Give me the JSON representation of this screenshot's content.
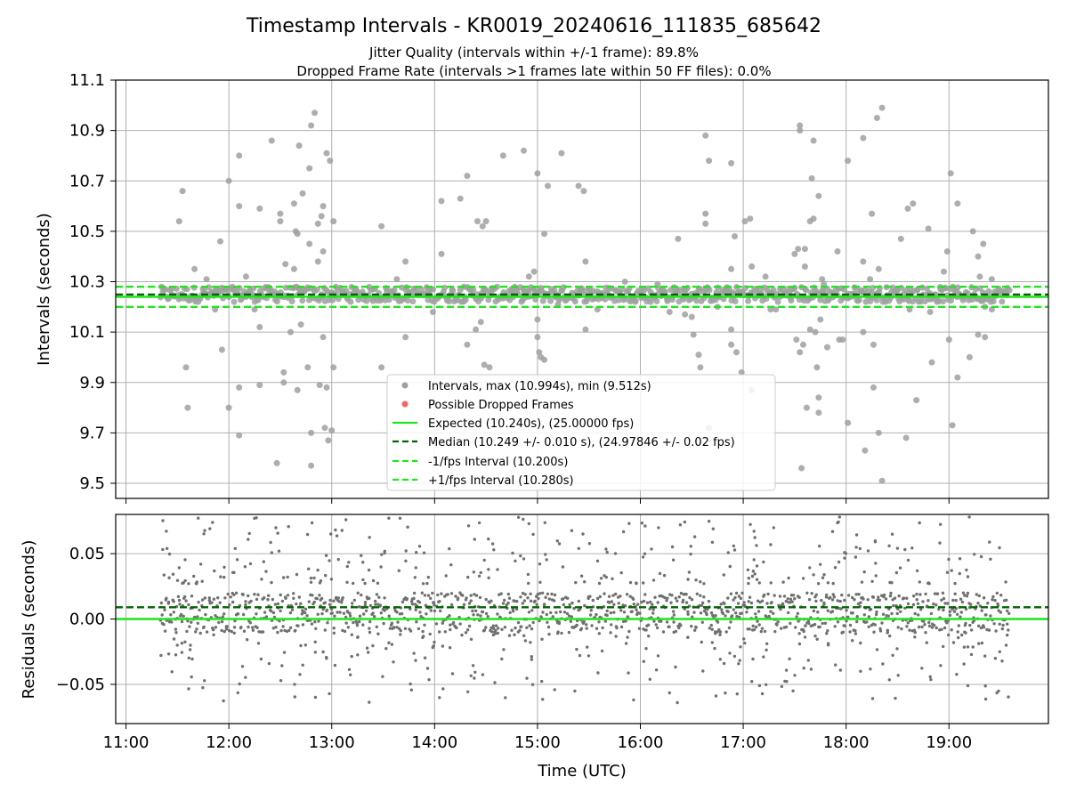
{
  "figure": {
    "title": "Timestamp Intervals - KR0019_20240616_111835_685642",
    "subtitle_1": "Jitter Quality (intervals within +/-1 frame): 89.8%",
    "subtitle_2": "Dropped Frame Rate (intervals >1 frames late within 50 FF files): 0.0%"
  },
  "chart_data": [
    {
      "type": "scatter",
      "ylabel": "Intervals (seconds)",
      "xlabel": "",
      "xlim": [
        "10:54",
        "19:58"
      ],
      "ylim": [
        9.44,
        11.1
      ],
      "yticks": [
        9.5,
        9.7,
        9.9,
        10.1,
        10.3,
        10.5,
        10.7,
        10.9,
        11.1
      ],
      "ytick_labels": [
        "9.5",
        "9.7",
        "9.9",
        "10.1",
        "10.3",
        "10.5",
        "10.7",
        "10.9",
        "11.1"
      ],
      "xticks": [
        "11:00",
        "12:00",
        "13:00",
        "14:00",
        "15:00",
        "16:00",
        "17:00",
        "18:00",
        "19:00"
      ],
      "grid": true,
      "legend_position": "lower-center",
      "series": [
        {
          "name": "Intervals, max (10.994s), min (9.512s)",
          "kind": "scatter",
          "color": "#a0a0a0",
          "x_start": "11:20",
          "x_end": "19:35",
          "core_y_range": [
            10.22,
            10.28
          ],
          "max": 10.994,
          "min": 9.512,
          "outliers": [
            [
              "11:31",
              10.54
            ],
            [
              "11:33",
              10.66
            ],
            [
              "11:35",
              9.96
            ],
            [
              "11:36",
              9.8
            ],
            [
              "11:40",
              10.35
            ],
            [
              "11:47",
              10.31
            ],
            [
              "11:52",
              10.19
            ],
            [
              "11:55",
              10.46
            ],
            [
              "11:56",
              10.03
            ],
            [
              "12:00",
              10.7
            ],
            [
              "12:00",
              9.8
            ],
            [
              "12:06",
              10.8
            ],
            [
              "12:06",
              10.6
            ],
            [
              "12:06",
              9.88
            ],
            [
              "12:06",
              9.69
            ],
            [
              "12:10",
              10.32
            ],
            [
              "12:15",
              10.19
            ],
            [
              "12:18",
              10.59
            ],
            [
              "12:18",
              10.12
            ],
            [
              "12:18",
              9.89
            ],
            [
              "12:25",
              10.86
            ],
            [
              "12:28",
              9.58
            ],
            [
              "12:30",
              10.57
            ],
            [
              "12:30",
              10.54
            ],
            [
              "12:32",
              9.94
            ],
            [
              "12:32",
              9.9
            ],
            [
              "12:33",
              10.37
            ],
            [
              "12:36",
              10.1
            ],
            [
              "12:38",
              10.35
            ],
            [
              "12:38",
              10.61
            ],
            [
              "12:39",
              10.5
            ],
            [
              "12:40",
              10.49
            ],
            [
              "12:40",
              9.87
            ],
            [
              "12:41",
              10.84
            ],
            [
              "12:42",
              10.13
            ],
            [
              "12:42",
              10.27
            ],
            [
              "12:43",
              10.65
            ],
            [
              "12:46",
              9.96
            ],
            [
              "12:47",
              10.45
            ],
            [
              "12:47",
              10.75
            ],
            [
              "12:48",
              10.92
            ],
            [
              "12:48",
              9.7
            ],
            [
              "12:48",
              9.57
            ],
            [
              "12:50",
              10.97
            ],
            [
              "12:52",
              10.53
            ],
            [
              "12:52",
              10.38
            ],
            [
              "12:53",
              9.89
            ],
            [
              "12:54",
              10.56
            ],
            [
              "12:55",
              10.6
            ],
            [
              "12:55",
              10.42
            ],
            [
              "12:55",
              10.08
            ],
            [
              "12:56",
              9.72
            ],
            [
              "12:57",
              9.88
            ],
            [
              "12:57",
              10.81
            ],
            [
              "12:58",
              9.67
            ],
            [
              "12:59",
              10.78
            ],
            [
              "13:00",
              9.71
            ],
            [
              "13:01",
              10.54
            ],
            [
              "13:01",
              9.96
            ],
            [
              "13:29",
              10.52
            ],
            [
              "13:29",
              9.96
            ],
            [
              "13:38",
              10.31
            ],
            [
              "13:43",
              10.38
            ],
            [
              "13:43",
              10.08
            ],
            [
              "13:59",
              10.18
            ],
            [
              "14:04",
              10.62
            ],
            [
              "14:04",
              10.41
            ],
            [
              "14:15",
              10.63
            ],
            [
              "14:17",
              10.28
            ],
            [
              "14:19",
              10.72
            ],
            [
              "14:19",
              10.05
            ],
            [
              "14:24",
              10.11
            ],
            [
              "14:25",
              10.54
            ],
            [
              "14:27",
              10.14
            ],
            [
              "14:28",
              10.52
            ],
            [
              "14:29",
              9.97
            ],
            [
              "14:30",
              10.54
            ],
            [
              "14:32",
              9.96
            ],
            [
              "14:40",
              10.8
            ],
            [
              "14:45",
              10.25
            ],
            [
              "14:52",
              10.82
            ],
            [
              "14:55",
              10.32
            ],
            [
              "14:58",
              10.34
            ],
            [
              "15:00",
              10.73
            ],
            [
              "15:00",
              10.15
            ],
            [
              "15:00",
              10.08
            ],
            [
              "15:01",
              10.02
            ],
            [
              "15:02",
              10.0
            ],
            [
              "15:04",
              10.49
            ],
            [
              "15:04",
              9.99
            ],
            [
              "15:06",
              10.68
            ],
            [
              "15:11",
              10.25
            ],
            [
              "15:12",
              10.21
            ],
            [
              "15:14",
              10.81
            ],
            [
              "15:24",
              10.68
            ],
            [
              "15:27",
              10.66
            ],
            [
              "15:28",
              10.38
            ],
            [
              "15:28",
              10.11
            ],
            [
              "15:35",
              10.19
            ],
            [
              "15:51",
              10.3
            ],
            [
              "16:06",
              10.22
            ],
            [
              "16:10",
              10.29
            ],
            [
              "16:13",
              10.27
            ],
            [
              "16:16",
              10.23
            ],
            [
              "16:17",
              10.18
            ],
            [
              "16:22",
              10.47
            ],
            [
              "16:26",
              10.17
            ],
            [
              "16:30",
              10.16
            ],
            [
              "16:31",
              10.09
            ],
            [
              "16:34",
              10.01
            ],
            [
              "16:35",
              9.96
            ],
            [
              "16:38",
              10.88
            ],
            [
              "16:38",
              10.57
            ],
            [
              "16:38",
              10.53
            ],
            [
              "16:40",
              10.78
            ],
            [
              "16:40",
              9.72
            ],
            [
              "16:45",
              10.2
            ],
            [
              "16:53",
              10.77
            ],
            [
              "16:53",
              10.35
            ],
            [
              "16:53",
              10.11
            ],
            [
              "16:53",
              10.05
            ],
            [
              "16:55",
              10.48
            ],
            [
              "16:56",
              10.02
            ],
            [
              "16:59",
              9.94
            ],
            [
              "17:01",
              10.54
            ],
            [
              "17:04",
              10.55
            ],
            [
              "17:05",
              10.36
            ],
            [
              "17:05",
              9.87
            ],
            [
              "17:13",
              10.32
            ],
            [
              "17:16",
              10.19
            ],
            [
              "17:19",
              10.19
            ],
            [
              "17:30",
              10.41
            ],
            [
              "17:31",
              10.07
            ],
            [
              "17:32",
              10.43
            ],
            [
              "17:33",
              10.02
            ],
            [
              "17:33",
              10.92
            ],
            [
              "17:33",
              10.9
            ],
            [
              "17:34",
              9.56
            ],
            [
              "17:35",
              10.05
            ],
            [
              "17:36",
              10.43
            ],
            [
              "17:36",
              10.36
            ],
            [
              "17:37",
              9.8
            ],
            [
              "17:39",
              10.11
            ],
            [
              "17:39",
              10.54
            ],
            [
              "17:40",
              10.71
            ],
            [
              "17:41",
              10.86
            ],
            [
              "17:41",
              10.55
            ],
            [
              "17:42",
              10.1
            ],
            [
              "17:43",
              9.96
            ],
            [
              "17:44",
              10.64
            ],
            [
              "17:44",
              9.84
            ],
            [
              "17:44",
              9.78
            ],
            [
              "17:45",
              10.15
            ],
            [
              "17:46",
              10.31
            ],
            [
              "17:47",
              10.29
            ],
            [
              "17:49",
              10.04
            ],
            [
              "17:55",
              10.42
            ],
            [
              "17:56",
              10.07
            ],
            [
              "17:58",
              10.07
            ],
            [
              "18:01",
              10.78
            ],
            [
              "18:01",
              9.74
            ],
            [
              "18:10",
              10.87
            ],
            [
              "18:10",
              10.38
            ],
            [
              "18:10",
              10.1
            ],
            [
              "18:11",
              9.63
            ],
            [
              "18:14",
              10.31
            ],
            [
              "18:15",
              10.57
            ],
            [
              "18:16",
              10.05
            ],
            [
              "18:16",
              9.88
            ],
            [
              "18:18",
              10.95
            ],
            [
              "18:19",
              10.35
            ],
            [
              "18:19",
              9.7
            ],
            [
              "18:21",
              10.99
            ],
            [
              "18:21",
              9.51
            ],
            [
              "18:32",
              10.47
            ],
            [
              "18:35",
              9.68
            ],
            [
              "18:36",
              10.59
            ],
            [
              "18:37",
              10.19
            ],
            [
              "18:39",
              10.61
            ],
            [
              "18:41",
              9.83
            ],
            [
              "18:48",
              10.51
            ],
            [
              "18:48",
              10.23
            ],
            [
              "18:49",
              10.18
            ],
            [
              "18:50",
              9.98
            ],
            [
              "18:53",
              10.22
            ],
            [
              "18:57",
              10.34
            ],
            [
              "18:59",
              10.42
            ],
            [
              "19:00",
              10.07
            ],
            [
              "19:01",
              10.73
            ],
            [
              "19:02",
              9.73
            ],
            [
              "19:05",
              10.61
            ],
            [
              "19:05",
              9.92
            ],
            [
              "19:12",
              10.0
            ],
            [
              "19:14",
              10.5
            ],
            [
              "19:17",
              10.4
            ],
            [
              "19:17",
              10.09
            ],
            [
              "19:18",
              10.32
            ],
            [
              "19:18",
              10.23
            ],
            [
              "19:20",
              10.45
            ],
            [
              "19:21",
              10.08
            ],
            [
              "19:21",
              10.2
            ],
            [
              "19:25",
              10.31
            ],
            [
              "19:25",
              10.19
            ]
          ]
        },
        {
          "name": "Possible Dropped Frames",
          "kind": "scatter",
          "color": "#f04040",
          "points": []
        },
        {
          "name": "Expected (10.240s), (25.00000 fps)",
          "kind": "hline",
          "y": 10.24,
          "color": "#1fe51f",
          "style": "solid"
        },
        {
          "name": "Median (10.249 +/- 0.010 s), (24.97846 +/- 0.02 fps)",
          "kind": "hline",
          "y": 10.249,
          "color": "#006400",
          "style": "dashed"
        },
        {
          "name": "-1/fps Interval (10.200s)",
          "kind": "hline",
          "y": 10.2,
          "color": "#1fe51f",
          "style": "dashed"
        },
        {
          "name": "+1/fps Interval (10.280s)",
          "kind": "hline",
          "y": 10.28,
          "color": "#1fe51f",
          "style": "dashed"
        }
      ]
    },
    {
      "type": "scatter",
      "ylabel": "Residuals (seconds)",
      "xlabel": "Time (UTC)",
      "xlim": [
        "10:54",
        "19:58"
      ],
      "ylim": [
        -0.08,
        0.08
      ],
      "yticks": [
        -0.05,
        0.0,
        0.05
      ],
      "ytick_labels": [
        "−0.05",
        "0.00",
        "0.05"
      ],
      "xticks": [
        "11:00",
        "12:00",
        "13:00",
        "14:00",
        "15:00",
        "16:00",
        "17:00",
        "18:00",
        "19:00"
      ],
      "grid": true,
      "series": [
        {
          "kind": "scatter",
          "color": "#707070",
          "x_start": "11:20",
          "x_end": "19:35",
          "core_y_range": [
            -0.01,
            0.02
          ],
          "spread_y_range": [
            -0.078,
            0.078
          ]
        },
        {
          "kind": "hline",
          "y": 0.0,
          "color": "#1fe51f",
          "style": "solid"
        },
        {
          "kind": "hline",
          "y": 0.009,
          "color": "#006400",
          "style": "dashed"
        }
      ]
    }
  ]
}
